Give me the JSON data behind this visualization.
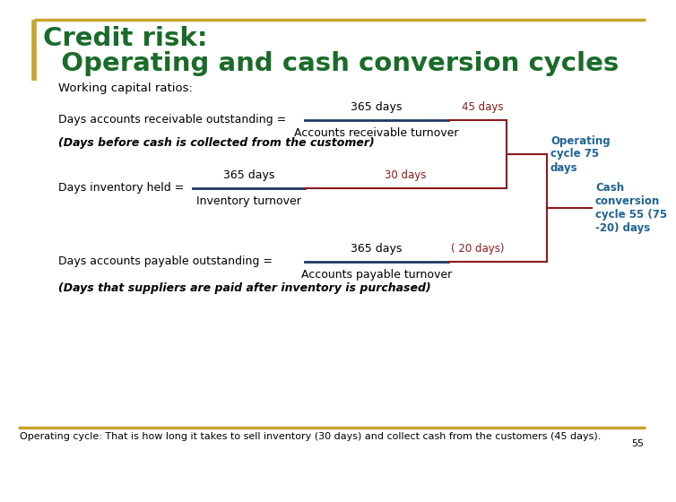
{
  "title_line1": "Credit risk:",
  "title_line2": "  Operating and cash conversion cycles",
  "title_color": "#1A6B2A",
  "subtitle": "Working capital ratios:",
  "bg_color": "#FFFFFF",
  "border_color_gold": "#C8A430",
  "formula1_label": "Days accounts receivable outstanding =",
  "formula1_num": "365 days",
  "formula1_den": "Accounts receivable turnover",
  "formula1_result": "45 days",
  "formula2_label": "Days inventory held =",
  "formula2_num": "365 days",
  "formula2_den": "Inventory turnover",
  "formula2_result": "30 days",
  "formula3_label": "Days accounts payable outstanding =",
  "formula3_num": "365 days",
  "formula3_den": "Accounts payable turnover",
  "formula3_result": "( 20 days)",
  "result_color": "#8B1A1A",
  "italic_note1": "(Days before cash is collected from the customer)",
  "italic_note2": "(Days that suppliers are paid after inventory is purchased)",
  "operating_cycle_label": "Operating\ncycle 75\ndays",
  "cash_conversion_label": "Cash\nconversion\ncycle 55 (75\n-20) days",
  "cycle_text_color": "#1F6391",
  "line_color": "#8B1A1A",
  "frac_line_color": "#1F3864",
  "footer_text": "Operating cycle: That is how long it takes to sell inventory (30 days) and collect cash from the customers (45 days).",
  "footer_page": "55",
  "footer_color": "#000000",
  "text_color": "#000000"
}
